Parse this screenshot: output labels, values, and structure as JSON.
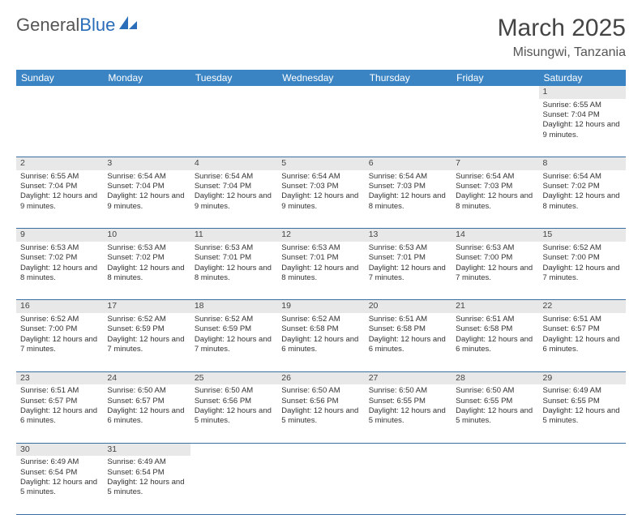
{
  "brand": {
    "general": "General",
    "blue": "Blue"
  },
  "header": {
    "title": "March 2025",
    "location": "Misungwi, Tanzania"
  },
  "colors": {
    "header_bg": "#3b84c4",
    "header_text": "#ffffff",
    "daynum_bg": "#e8e8e8",
    "row_border": "#3b6ea3",
    "logo_general": "#555555",
    "logo_blue": "#2a6db8"
  },
  "weekdays": [
    "Sunday",
    "Monday",
    "Tuesday",
    "Wednesday",
    "Thursday",
    "Friday",
    "Saturday"
  ],
  "labels": {
    "sunrise": "Sunrise:",
    "sunset": "Sunset:",
    "daylight": "Daylight:"
  },
  "weeks": [
    {
      "nums": [
        "",
        "",
        "",
        "",
        "",
        "",
        "1"
      ],
      "cells": [
        null,
        null,
        null,
        null,
        null,
        null,
        {
          "sr": "6:55 AM",
          "ss": "7:04 PM",
          "dl": "12 hours and 9 minutes."
        }
      ]
    },
    {
      "nums": [
        "2",
        "3",
        "4",
        "5",
        "6",
        "7",
        "8"
      ],
      "cells": [
        {
          "sr": "6:55 AM",
          "ss": "7:04 PM",
          "dl": "12 hours and 9 minutes."
        },
        {
          "sr": "6:54 AM",
          "ss": "7:04 PM",
          "dl": "12 hours and 9 minutes."
        },
        {
          "sr": "6:54 AM",
          "ss": "7:04 PM",
          "dl": "12 hours and 9 minutes."
        },
        {
          "sr": "6:54 AM",
          "ss": "7:03 PM",
          "dl": "12 hours and 9 minutes."
        },
        {
          "sr": "6:54 AM",
          "ss": "7:03 PM",
          "dl": "12 hours and 8 minutes."
        },
        {
          "sr": "6:54 AM",
          "ss": "7:03 PM",
          "dl": "12 hours and 8 minutes."
        },
        {
          "sr": "6:54 AM",
          "ss": "7:02 PM",
          "dl": "12 hours and 8 minutes."
        }
      ]
    },
    {
      "nums": [
        "9",
        "10",
        "11",
        "12",
        "13",
        "14",
        "15"
      ],
      "cells": [
        {
          "sr": "6:53 AM",
          "ss": "7:02 PM",
          "dl": "12 hours and 8 minutes."
        },
        {
          "sr": "6:53 AM",
          "ss": "7:02 PM",
          "dl": "12 hours and 8 minutes."
        },
        {
          "sr": "6:53 AM",
          "ss": "7:01 PM",
          "dl": "12 hours and 8 minutes."
        },
        {
          "sr": "6:53 AM",
          "ss": "7:01 PM",
          "dl": "12 hours and 8 minutes."
        },
        {
          "sr": "6:53 AM",
          "ss": "7:01 PM",
          "dl": "12 hours and 7 minutes."
        },
        {
          "sr": "6:53 AM",
          "ss": "7:00 PM",
          "dl": "12 hours and 7 minutes."
        },
        {
          "sr": "6:52 AM",
          "ss": "7:00 PM",
          "dl": "12 hours and 7 minutes."
        }
      ]
    },
    {
      "nums": [
        "16",
        "17",
        "18",
        "19",
        "20",
        "21",
        "22"
      ],
      "cells": [
        {
          "sr": "6:52 AM",
          "ss": "7:00 PM",
          "dl": "12 hours and 7 minutes."
        },
        {
          "sr": "6:52 AM",
          "ss": "6:59 PM",
          "dl": "12 hours and 7 minutes."
        },
        {
          "sr": "6:52 AM",
          "ss": "6:59 PM",
          "dl": "12 hours and 7 minutes."
        },
        {
          "sr": "6:52 AM",
          "ss": "6:58 PM",
          "dl": "12 hours and 6 minutes."
        },
        {
          "sr": "6:51 AM",
          "ss": "6:58 PM",
          "dl": "12 hours and 6 minutes."
        },
        {
          "sr": "6:51 AM",
          "ss": "6:58 PM",
          "dl": "12 hours and 6 minutes."
        },
        {
          "sr": "6:51 AM",
          "ss": "6:57 PM",
          "dl": "12 hours and 6 minutes."
        }
      ]
    },
    {
      "nums": [
        "23",
        "24",
        "25",
        "26",
        "27",
        "28",
        "29"
      ],
      "cells": [
        {
          "sr": "6:51 AM",
          "ss": "6:57 PM",
          "dl": "12 hours and 6 minutes."
        },
        {
          "sr": "6:50 AM",
          "ss": "6:57 PM",
          "dl": "12 hours and 6 minutes."
        },
        {
          "sr": "6:50 AM",
          "ss": "6:56 PM",
          "dl": "12 hours and 5 minutes."
        },
        {
          "sr": "6:50 AM",
          "ss": "6:56 PM",
          "dl": "12 hours and 5 minutes."
        },
        {
          "sr": "6:50 AM",
          "ss": "6:55 PM",
          "dl": "12 hours and 5 minutes."
        },
        {
          "sr": "6:50 AM",
          "ss": "6:55 PM",
          "dl": "12 hours and 5 minutes."
        },
        {
          "sr": "6:49 AM",
          "ss": "6:55 PM",
          "dl": "12 hours and 5 minutes."
        }
      ]
    },
    {
      "nums": [
        "30",
        "31",
        "",
        "",
        "",
        "",
        ""
      ],
      "cells": [
        {
          "sr": "6:49 AM",
          "ss": "6:54 PM",
          "dl": "12 hours and 5 minutes."
        },
        {
          "sr": "6:49 AM",
          "ss": "6:54 PM",
          "dl": "12 hours and 5 minutes."
        },
        null,
        null,
        null,
        null,
        null
      ]
    }
  ]
}
